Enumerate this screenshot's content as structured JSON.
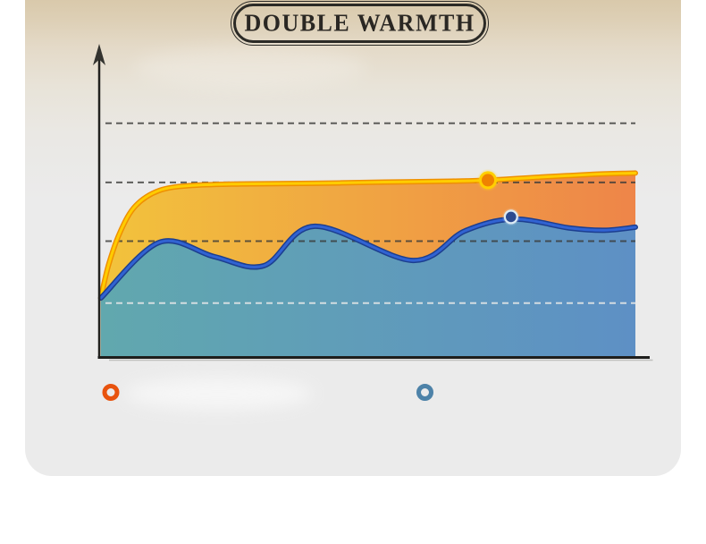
{
  "title": {
    "label": "DOUBLE WARMTH"
  },
  "colors": {
    "page_bg": "#ffffff",
    "card_top": "#d9c9ab",
    "card_bg": "#ebebeb",
    "axis": "#22221f",
    "grid_dark": "#3a3a38",
    "grid_light": "#e0e4e5",
    "title_border": "#2b2a26",
    "title_text": "#2a2723"
  },
  "legend": {
    "items": [
      {
        "name": "double-layer-warmth",
        "symbol": "ring",
        "color": "#e8530e",
        "label": ""
      },
      {
        "name": "single-layer-warmth",
        "symbol": "ring",
        "color": "#4d82a8",
        "label": ""
      }
    ]
  },
  "chart_data": {
    "type": "area",
    "title": "DOUBLE WARMTH",
    "xlabel": "",
    "ylabel": "",
    "note": "Stylized warmth-over-time comparison graphic; axes have an arrowed y-axis but no numeric tick labels. Points are fractions of the plot box (x: 0=left axis, 1=right end; y: 0=x-axis, 1=top).",
    "grid": "horizontal-dashed",
    "gridlines": [
      {
        "y": 0.753,
        "style": "dark"
      },
      {
        "y": 0.563,
        "style": "dark"
      },
      {
        "y": 0.374,
        "style": "dark"
      },
      {
        "y": 0.175,
        "style": "light"
      }
    ],
    "legend_position": "bottom-left",
    "series": [
      {
        "name": "double-layer-warmth",
        "stroke_main": "#ffcc00",
        "stroke_under": "#ef9000",
        "fill_left": "#f2c33c",
        "fill_right": "#ee8549",
        "points": [
          [
            0.003,
            0.191
          ],
          [
            0.018,
            0.301
          ],
          [
            0.04,
            0.407
          ],
          [
            0.068,
            0.488
          ],
          [
            0.112,
            0.537
          ],
          [
            0.173,
            0.553
          ],
          [
            0.265,
            0.558
          ],
          [
            0.398,
            0.56
          ],
          [
            0.532,
            0.564
          ],
          [
            0.657,
            0.567
          ],
          [
            0.725,
            0.57
          ],
          [
            0.832,
            0.581
          ],
          [
            0.923,
            0.589
          ],
          [
            1.0,
            0.593
          ]
        ],
        "marker": {
          "x": 0.725,
          "y": 0.57,
          "disc": "#ef8200",
          "ring": "#ffcf00",
          "glow": "#ffd90a"
        }
      },
      {
        "name": "single-layer-warmth",
        "stroke_main": "#3163d2",
        "stroke_under": "#1c3e8f",
        "fill_left": "#61a8ae",
        "fill_right": "#5e90c5",
        "points": [
          [
            0.003,
            0.191
          ],
          [
            0.112,
            0.37
          ],
          [
            0.215,
            0.324
          ],
          [
            0.307,
            0.295
          ],
          [
            0.402,
            0.422
          ],
          [
            0.585,
            0.312
          ],
          [
            0.682,
            0.407
          ],
          [
            0.773,
            0.445
          ],
          [
            0.878,
            0.416
          ],
          [
            0.942,
            0.409
          ],
          [
            1.0,
            0.419
          ]
        ],
        "marker": {
          "x": 0.768,
          "y": 0.452,
          "disc": "#2c4a8f",
          "ring": "#dcebf5",
          "glow": "#eaf5fc"
        }
      }
    ]
  }
}
